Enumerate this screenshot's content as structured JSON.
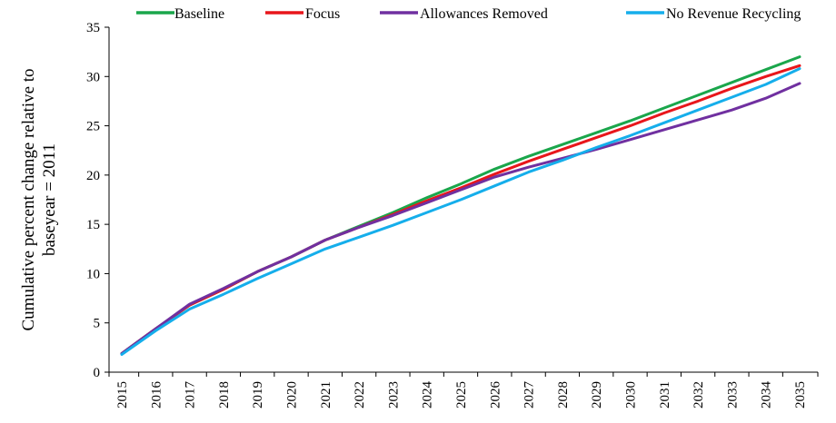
{
  "chart_data": {
    "type": "line",
    "title": "",
    "xlabel": "",
    "ylabel": "Cumulative percent change relative to baseyear = 2011",
    "ylabel_lines": [
      "Cumulative percent change relative to",
      "baseyear = 2011"
    ],
    "ylim": [
      0,
      35
    ],
    "yticks": [
      0,
      5,
      10,
      15,
      20,
      25,
      30,
      35
    ],
    "grid": false,
    "legend_position": "top",
    "x": [
      "2015",
      "2016",
      "2017",
      "2018",
      "2019",
      "2020",
      "2021",
      "2022",
      "2023",
      "2024",
      "2025",
      "2026",
      "2027",
      "2028",
      "2029",
      "2030",
      "2031",
      "2032",
      "2033",
      "2034",
      "2035"
    ],
    "series": [
      {
        "name": "Baseline",
        "color": "#1aa64b",
        "values": [
          1.9,
          4.4,
          6.8,
          8.4,
          10.2,
          11.7,
          13.4,
          14.8,
          16.2,
          17.7,
          19.1,
          20.6,
          21.9,
          23.1,
          24.3,
          25.5,
          26.8,
          28.1,
          29.4,
          30.7,
          32.0
        ]
      },
      {
        "name": "Focus",
        "color": "#e8161b",
        "values": [
          1.9,
          4.4,
          6.8,
          8.4,
          10.2,
          11.7,
          13.4,
          14.7,
          16.0,
          17.4,
          18.7,
          20.1,
          21.4,
          22.6,
          23.8,
          25.0,
          26.3,
          27.5,
          28.8,
          30.0,
          31.1
        ]
      },
      {
        "name": "Allowances Removed",
        "color": "#7030a0",
        "values": [
          1.9,
          4.4,
          6.9,
          8.5,
          10.2,
          11.7,
          13.4,
          14.7,
          15.9,
          17.2,
          18.5,
          19.8,
          20.8,
          21.7,
          22.6,
          23.6,
          24.6,
          25.6,
          26.6,
          27.8,
          29.3
        ]
      },
      {
        "name": "No Revenue Recycling",
        "color": "#15aeeb",
        "values": [
          1.8,
          4.2,
          6.4,
          7.9,
          9.5,
          11.0,
          12.5,
          13.7,
          14.9,
          16.2,
          17.5,
          18.9,
          20.3,
          21.5,
          22.8,
          24.0,
          25.3,
          26.6,
          27.9,
          29.2,
          30.8
        ]
      }
    ]
  }
}
